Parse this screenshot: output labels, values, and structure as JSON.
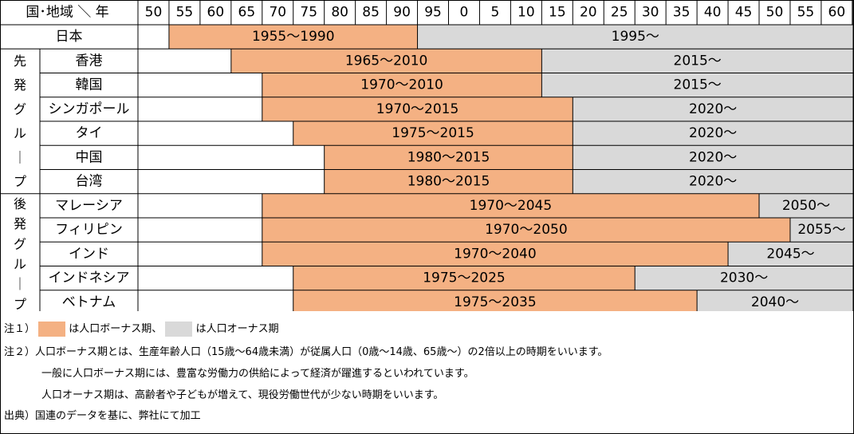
{
  "colors": {
    "bonus": "#F4B183",
    "onus": "#D9D9D9",
    "grid": "#000000"
  },
  "corner_label": "国･地域 ＼ 年",
  "years": [
    "50",
    "55",
    "60",
    "65",
    "70",
    "75",
    "80",
    "85",
    "90",
    "95",
    "0",
    "5",
    "10",
    "15",
    "20",
    "25",
    "30",
    "35",
    "40",
    "45",
    "50",
    "55",
    "60"
  ],
  "groups": [
    {
      "label": "",
      "rows": [
        0
      ]
    },
    {
      "label": "先発グループ",
      "rows": [
        1,
        2,
        3,
        4,
        5,
        6
      ]
    },
    {
      "label": "後発グループ",
      "rows": [
        7,
        8,
        9,
        10,
        11
      ]
    }
  ],
  "chart_data": {
    "type": "table",
    "x_unit": "year",
    "columns_start_year": 1950,
    "columns_end_year": 2060,
    "series": [
      {
        "name": "人口ボーナス期",
        "color": "#F4B183"
      },
      {
        "name": "人口オーナス期",
        "color": "#D9D9D9"
      }
    ],
    "rows": [
      {
        "country": "日本",
        "bonus_start": 1955,
        "bonus_end": 1990,
        "bonus_label": "1955～1990",
        "onus_start": 1995,
        "onus_label": "1995～"
      },
      {
        "country": "香港",
        "bonus_start": 1965,
        "bonus_end": 2010,
        "bonus_label": "1965～2010",
        "onus_start": 2015,
        "onus_label": "2015～"
      },
      {
        "country": "韓国",
        "bonus_start": 1970,
        "bonus_end": 2010,
        "bonus_label": "1970～2010",
        "onus_start": 2015,
        "onus_label": "2015～"
      },
      {
        "country": "シンガポール",
        "bonus_start": 1970,
        "bonus_end": 2015,
        "bonus_label": "1970～2015",
        "onus_start": 2020,
        "onus_label": "2020～"
      },
      {
        "country": "タイ",
        "bonus_start": 1975,
        "bonus_end": 2015,
        "bonus_label": "1975～2015",
        "onus_start": 2020,
        "onus_label": "2020～"
      },
      {
        "country": "中国",
        "bonus_start": 1980,
        "bonus_end": 2015,
        "bonus_label": "1980～2015",
        "onus_start": 2020,
        "onus_label": "2020～"
      },
      {
        "country": "台湾",
        "bonus_start": 1980,
        "bonus_end": 2015,
        "bonus_label": "1980～2015",
        "onus_start": 2020,
        "onus_label": "2020～"
      },
      {
        "country": "マレーシア",
        "bonus_start": 1970,
        "bonus_end": 2045,
        "bonus_label": "1970～2045",
        "onus_start": 2050,
        "onus_label": "2050～"
      },
      {
        "country": "フィリピン",
        "bonus_start": 1970,
        "bonus_end": 2050,
        "bonus_label": "1970～2050",
        "onus_start": 2055,
        "onus_label": "2055～"
      },
      {
        "country": "インド",
        "bonus_start": 1970,
        "bonus_end": 2040,
        "bonus_label": "1970～2040",
        "onus_start": 2045,
        "onus_label": "2045～"
      },
      {
        "country": "インドネシア",
        "bonus_start": 1975,
        "bonus_end": 2025,
        "bonus_label": "1975～2025",
        "onus_start": 2030,
        "onus_label": "2030～"
      },
      {
        "country": "ベトナム",
        "bonus_start": 1975,
        "bonus_end": 2035,
        "bonus_label": "1975～2035",
        "onus_start": 2040,
        "onus_label": "2040～"
      }
    ]
  },
  "notes": {
    "note1_prefix": "注１）",
    "note1_bonus": "は人口ボーナス期、",
    "note1_onus": "は人口オーナス期",
    "note2_prefix": "注２）",
    "note2_line1": "人口ボーナス期とは、生産年齢人口（15歳～64歳未満）が従属人口（0歳～14歳、65歳～）の2倍以上の時期をいいます。",
    "note2_line2": "一般に人口ボーナス期には、豊富な労働力の供給によって経済が躍進するといわれています。",
    "note2_line3": "人口オーナス期は、高齢者や子どもが増えて、現役労働世代が少ない時期をいいます。",
    "source_prefix": "出典）",
    "source_text": "国連のデータを基に、弊社にて加工"
  }
}
